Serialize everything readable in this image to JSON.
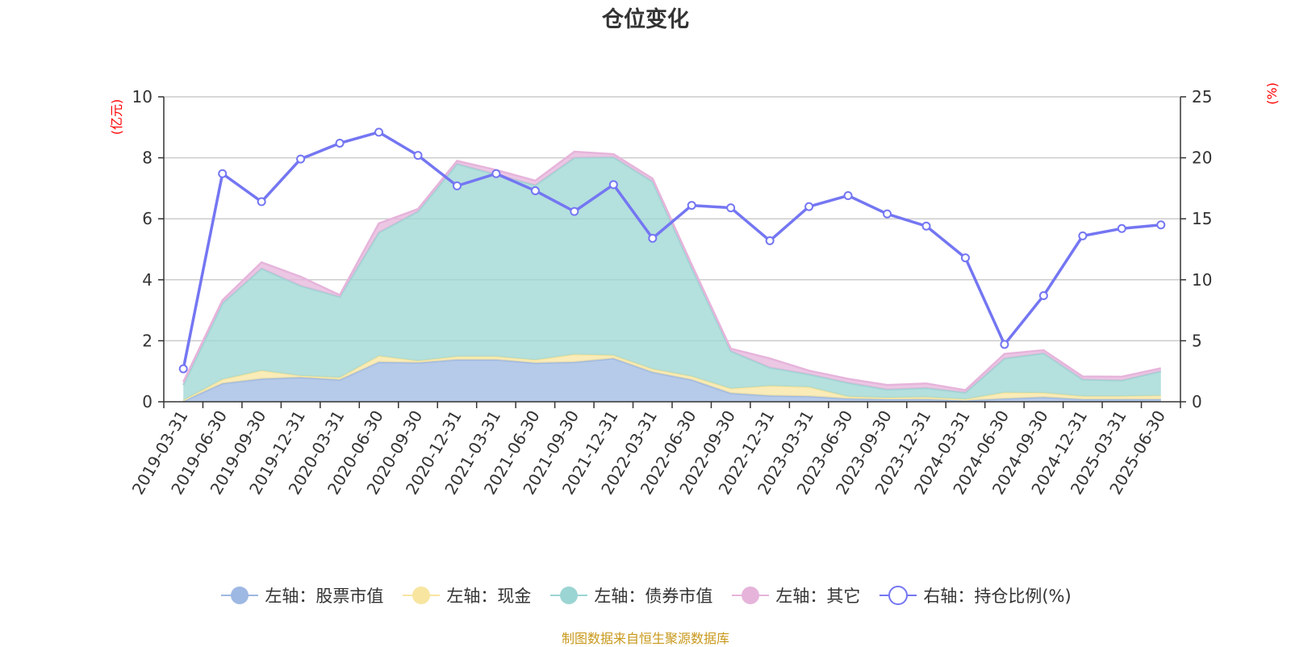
{
  "title": "仓位变化",
  "source_note": "制图数据来自恒生聚源数据库",
  "chart_data": {
    "type": "area",
    "categories": [
      "2019-03-31",
      "2019-06-30",
      "2019-09-30",
      "2019-12-31",
      "2020-03-31",
      "2020-06-30",
      "2020-09-30",
      "2020-12-31",
      "2021-03-31",
      "2021-06-30",
      "2021-09-30",
      "2021-12-31",
      "2022-03-31",
      "2022-06-30",
      "2022-09-30",
      "2022-12-31",
      "2023-03-31",
      "2023-06-30",
      "2023-09-30",
      "2023-12-31",
      "2024-03-31",
      "2024-06-30",
      "2024-09-30",
      "2024-12-31",
      "2025-03-31",
      "2025-06-30"
    ],
    "left_axis": {
      "unit": "(亿元)",
      "min": 0,
      "max": 10,
      "ticks": [
        0,
        2,
        4,
        6,
        8,
        10
      ]
    },
    "right_axis": {
      "unit": "(%)",
      "min": 0,
      "max": 25,
      "ticks": [
        0,
        5,
        10,
        15,
        20,
        25
      ]
    },
    "grid": true,
    "legend_position": "bottom",
    "series": [
      {
        "name": "左轴：股票市值",
        "axis": "left",
        "kind": "stacked-area",
        "color": "#9db8e2",
        "values": [
          0.02,
          0.6,
          0.75,
          0.8,
          0.72,
          1.3,
          1.28,
          1.38,
          1.38,
          1.27,
          1.3,
          1.42,
          0.97,
          0.72,
          0.28,
          0.2,
          0.18,
          0.1,
          0.08,
          0.08,
          0.04,
          0.1,
          0.15,
          0.08,
          0.08,
          0.08
        ]
      },
      {
        "name": "左轴：现金",
        "axis": "left",
        "kind": "stacked-area",
        "color": "#f8e5a0",
        "values": [
          0.03,
          0.13,
          0.27,
          0.05,
          0.07,
          0.2,
          0.06,
          0.1,
          0.1,
          0.1,
          0.25,
          0.1,
          0.1,
          0.11,
          0.15,
          0.32,
          0.3,
          0.07,
          0.05,
          0.07,
          0.04,
          0.2,
          0.14,
          0.1,
          0.1,
          0.12
        ]
      },
      {
        "name": "左轴：债券市值",
        "axis": "left",
        "kind": "stacked-area",
        "color": "#9bd5d3",
        "values": [
          0.5,
          2.5,
          3.35,
          2.95,
          2.65,
          4.05,
          4.9,
          6.32,
          5.97,
          5.73,
          6.45,
          6.5,
          6.15,
          3.57,
          1.23,
          0.6,
          0.42,
          0.45,
          0.27,
          0.3,
          0.22,
          1.12,
          1.3,
          0.55,
          0.52,
          0.8
        ]
      },
      {
        "name": "左轴：其它",
        "axis": "left",
        "kind": "stacked-area",
        "color": "#e6b4db",
        "values": [
          0.1,
          0.1,
          0.2,
          0.3,
          0.06,
          0.3,
          0.08,
          0.1,
          0.15,
          0.15,
          0.2,
          0.1,
          0.1,
          0.1,
          0.08,
          0.3,
          0.12,
          0.13,
          0.15,
          0.15,
          0.08,
          0.15,
          0.1,
          0.1,
          0.12,
          0.1
        ]
      },
      {
        "name": "右轴：持仓比例(%)",
        "axis": "right",
        "kind": "line",
        "color": "#7476f2",
        "values": [
          2.7,
          18.7,
          16.4,
          19.9,
          21.2,
          22.1,
          20.2,
          17.7,
          18.7,
          17.3,
          15.6,
          17.8,
          13.4,
          16.1,
          15.9,
          13.2,
          16.0,
          16.9,
          15.4,
          14.4,
          11.8,
          4.7,
          8.7,
          13.6,
          14.2,
          14.5
        ]
      }
    ]
  }
}
